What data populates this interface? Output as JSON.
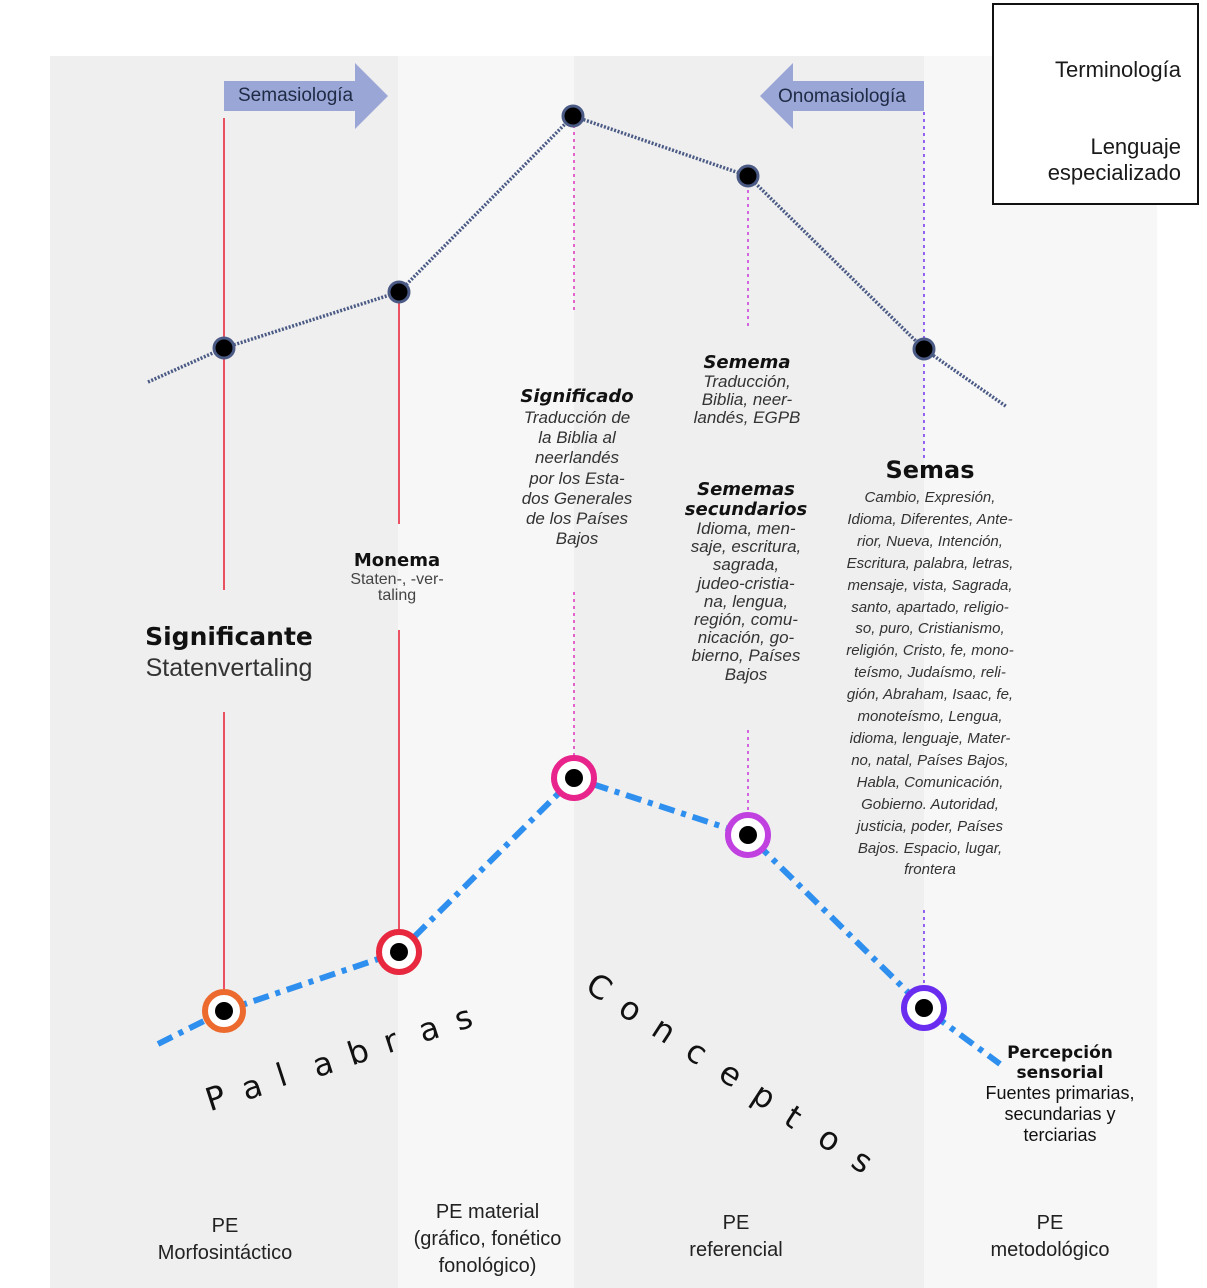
{
  "legend": {
    "terminologia": "Terminología",
    "lenguaje": "Lenguaje especializado",
    "lenguaje_l1": "Lenguaje",
    "lenguaje_l2": "especializado"
  },
  "arrows": {
    "semasiologia": "Semasiología",
    "onomasiologia": "Onomasiología"
  },
  "nodes": {
    "significante": {
      "title": "Significante",
      "body": "Statenvertaling"
    },
    "monema": {
      "title": "Monema",
      "body_l1": "Staten-, -ver-",
      "body_l2": "taling"
    },
    "significado": {
      "title": "Significado",
      "lines": [
        "Traducción de",
        "la Biblia al",
        "neerlandés",
        "por  los Esta-",
        "dos Generales",
        "de los Países",
        "Bajos"
      ]
    },
    "semema": {
      "title": "Semema",
      "lines": [
        "Traducción,",
        "Biblia, neer-",
        "landés, EGPB"
      ]
    },
    "sememas_secundarios": {
      "title_l1": "Sememas",
      "title_l2": "secundarios",
      "lines": [
        "Idioma, men-",
        "saje, escritura,",
        "sagrada,",
        "judeo-cristia-",
        "na, lengua,",
        "región, comu-",
        "nicación, go-",
        "bierno, Países",
        "Bajos"
      ]
    },
    "semas": {
      "title": "Semas",
      "lines": [
        "Cambio, Expresión,",
        "Idioma, Diferentes, Ante-",
        "rior, Nueva, Intención,",
        "Escritura, palabra, letras,",
        "mensaje, vista, Sagrada,",
        "santo, apartado, religio-",
        "so, puro, Cristianismo,",
        "religión, Cristo, fe, mono-",
        "teísmo, Judaísmo, reli-",
        "gión, Abraham, Isaac, fe,",
        "monoteísmo, Lengua,",
        "idioma, lenguaje, Mater-",
        "no, natal, Países Bajos,",
        "Habla, Comunicación,",
        "Gobierno. Autoridad,",
        "justicia, poder, Países",
        "Bajos. Espacio, lugar,",
        "frontera"
      ]
    },
    "percepcion": {
      "title_l1": "Percepción",
      "title_l2": "sensorial",
      "lines": [
        "Fuentes primarias,",
        "secundarias y",
        "terciarias"
      ]
    }
  },
  "big_labels": {
    "palabras": "Palabras",
    "conceptos": "Conceptos"
  },
  "columns": [
    {
      "l1": "PE",
      "l2": "Morfosintáctico"
    },
    {
      "l1": "PE material",
      "l2": "(gráfico, fonético",
      "l3": "fonológico)"
    },
    {
      "l1": "PE",
      "l2": "referencial"
    },
    {
      "l1": "PE",
      "l2": "metodológico"
    }
  ],
  "colors": {
    "terminology_line": "#4a5a85",
    "specialized_line": "#2f8fef",
    "arrow_fill": "#9aa6d6",
    "ring_1": "#ec6a2e",
    "ring_2": "#e8283f",
    "ring_3": "#e8238c",
    "ring_4": "#c040e0",
    "ring_5": "#6a2df0",
    "red_line": "#e8283f",
    "pink_dotted": "#e040c0",
    "purple_dotted": "#7a3ef0"
  }
}
